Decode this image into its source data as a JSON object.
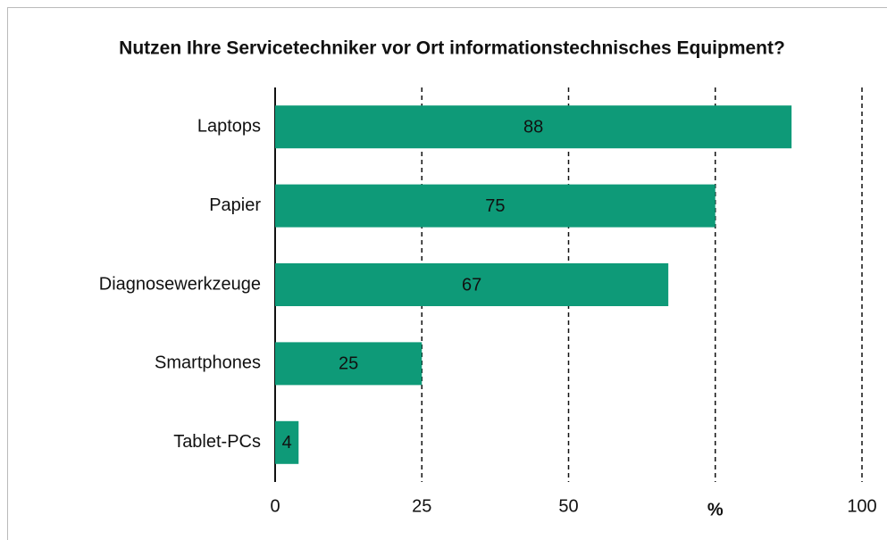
{
  "chart_data": {
    "type": "bar",
    "orientation": "horizontal",
    "title": "Nutzen Ihre Servicetechniker vor Ort informationstechnisches Equipment?",
    "categories": [
      "Laptops",
      "Papier",
      "Diagnosewerkzeuge",
      "Smartphones",
      "Tablet-PCs"
    ],
    "values": [
      88,
      75,
      67,
      25,
      4
    ],
    "color": "#0e9a78",
    "xlim": [
      0,
      100
    ],
    "xticks": [
      0,
      25,
      50,
      {
        "value": 75,
        "label": "%"
      },
      100
    ],
    "grid": true
  }
}
